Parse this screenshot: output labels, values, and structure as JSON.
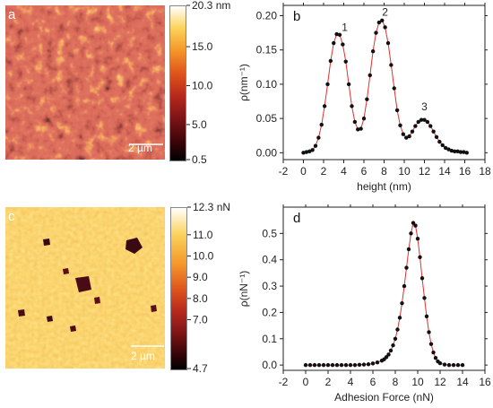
{
  "panels": {
    "a": {
      "letter": "a",
      "scale_bar": "2 µm",
      "colorbar": {
        "ticks": [
          "20.3 nm",
          "15.0",
          "10.0",
          "5.0",
          "0.5"
        ],
        "tick_values": [
          20.3,
          15.0,
          10.0,
          5.0,
          0.5
        ],
        "range": [
          0.5,
          20.3
        ],
        "colormap": [
          "#000000",
          "#3a0508",
          "#7a1416",
          "#b8281c",
          "#e0561c",
          "#f59a2a",
          "#fbd35c",
          "#ffffff"
        ]
      }
    },
    "c": {
      "letter": "c",
      "scale_bar": "2 µm",
      "colorbar": {
        "ticks": [
          "12.3 nN",
          "11.0",
          "10.0",
          "9.0",
          "8.0",
          "7.0",
          "4.7"
        ],
        "tick_values": [
          12.3,
          11.0,
          10.0,
          9.0,
          8.0,
          7.0,
          4.7
        ],
        "range": [
          4.7,
          12.3
        ],
        "colormap": [
          "#000000",
          "#3a0508",
          "#7a1416",
          "#b8281c",
          "#e0561c",
          "#f59a2a",
          "#fbd35c",
          "#ffffff"
        ]
      }
    }
  },
  "chart_data": [
    {
      "id": "b",
      "letter": "b",
      "type": "scatter",
      "xlabel": "height (nm)",
      "ylabel": "ρ(nm⁻¹)",
      "xlim": [
        -2,
        18
      ],
      "ylim": [
        -0.01,
        0.215
      ],
      "xticks": [
        -2,
        0,
        2,
        4,
        6,
        8,
        10,
        12,
        14,
        16,
        18
      ],
      "yticks": [
        0.0,
        0.05,
        0.1,
        0.15,
        0.2
      ],
      "ytick_labels": [
        "0.00",
        "0.05",
        "0.10",
        "0.15",
        "0.20"
      ],
      "peak_labels": [
        {
          "text": "1",
          "x": 4.1,
          "y": 0.178
        },
        {
          "text": "2",
          "x": 8.1,
          "y": 0.2
        },
        {
          "text": "3",
          "x": 12.0,
          "y": 0.062
        }
      ],
      "point_color": "#111111",
      "fit_color": "#e03030",
      "series": [
        {
          "x": [
            0.0,
            0.3,
            0.6,
            0.9,
            1.2,
            1.5,
            1.8,
            2.1,
            2.4,
            2.7,
            3.0,
            3.3,
            3.6,
            3.9,
            4.2,
            4.5,
            4.8,
            5.1,
            5.4,
            5.7,
            6.0,
            6.3,
            6.6,
            6.9,
            7.2,
            7.5,
            7.8,
            8.1,
            8.4,
            8.7,
            9.0,
            9.3,
            9.6,
            9.9,
            10.2,
            10.5,
            10.8,
            11.1,
            11.4,
            11.7,
            12.0,
            12.3,
            12.6,
            12.9,
            13.2,
            13.5,
            13.8,
            14.1,
            14.4,
            14.7,
            15.0,
            15.3,
            15.6,
            15.9,
            16.2
          ],
          "y": [
            0.0,
            0.001,
            0.002,
            0.004,
            0.01,
            0.022,
            0.041,
            0.068,
            0.1,
            0.134,
            0.16,
            0.173,
            0.172,
            0.158,
            0.133,
            0.1,
            0.068,
            0.045,
            0.034,
            0.035,
            0.05,
            0.078,
            0.113,
            0.148,
            0.175,
            0.19,
            0.193,
            0.183,
            0.16,
            0.128,
            0.094,
            0.062,
            0.04,
            0.027,
            0.022,
            0.024,
            0.031,
            0.039,
            0.045,
            0.048,
            0.048,
            0.045,
            0.039,
            0.031,
            0.023,
            0.016,
            0.011,
            0.007,
            0.005,
            0.003,
            0.002,
            0.002,
            0.001,
            0.001,
            0.0
          ]
        }
      ]
    },
    {
      "id": "d",
      "letter": "d",
      "type": "scatter",
      "xlabel": "Adhesion Force (nN)",
      "ylabel": "ρ(nN⁻¹)",
      "xlim": [
        -2,
        16
      ],
      "ylim": [
        -0.02,
        0.6
      ],
      "xticks": [
        -2,
        0,
        2,
        4,
        6,
        8,
        10,
        12,
        14,
        16
      ],
      "yticks": [
        0.0,
        0.1,
        0.2,
        0.3,
        0.4,
        0.5
      ],
      "ytick_labels": [
        "0.0",
        "0.1",
        "0.2",
        "0.3",
        "0.4",
        "0.5"
      ],
      "point_color": "#111111",
      "fit_color": "#e03030",
      "series": [
        {
          "x": [
            0.0,
            0.4,
            0.8,
            1.2,
            1.6,
            2.0,
            2.4,
            2.8,
            3.2,
            3.6,
            4.0,
            4.4,
            4.8,
            5.2,
            5.6,
            6.0,
            6.4,
            6.8,
            7.0,
            7.2,
            7.4,
            7.6,
            7.8,
            8.0,
            8.2,
            8.4,
            8.6,
            8.8,
            9.0,
            9.2,
            9.4,
            9.6,
            9.8,
            10.0,
            10.2,
            10.4,
            10.6,
            10.8,
            11.0,
            11.2,
            11.4,
            11.6,
            11.8,
            12.0,
            12.4,
            12.8,
            13.2,
            13.6,
            14.0
          ],
          "y": [
            0.0,
            0.0,
            0.0,
            0.0,
            0.0,
            0.0,
            0.0,
            0.0,
            0.0,
            0.0,
            0.0,
            0.0,
            0.001,
            0.002,
            0.003,
            0.006,
            0.01,
            0.017,
            0.022,
            0.03,
            0.04,
            0.055,
            0.075,
            0.1,
            0.135,
            0.18,
            0.235,
            0.3,
            0.37,
            0.44,
            0.5,
            0.54,
            0.53,
            0.48,
            0.41,
            0.33,
            0.255,
            0.185,
            0.125,
            0.08,
            0.048,
            0.027,
            0.014,
            0.007,
            0.002,
            0.0,
            0.0,
            0.0,
            0.0
          ]
        }
      ]
    }
  ]
}
